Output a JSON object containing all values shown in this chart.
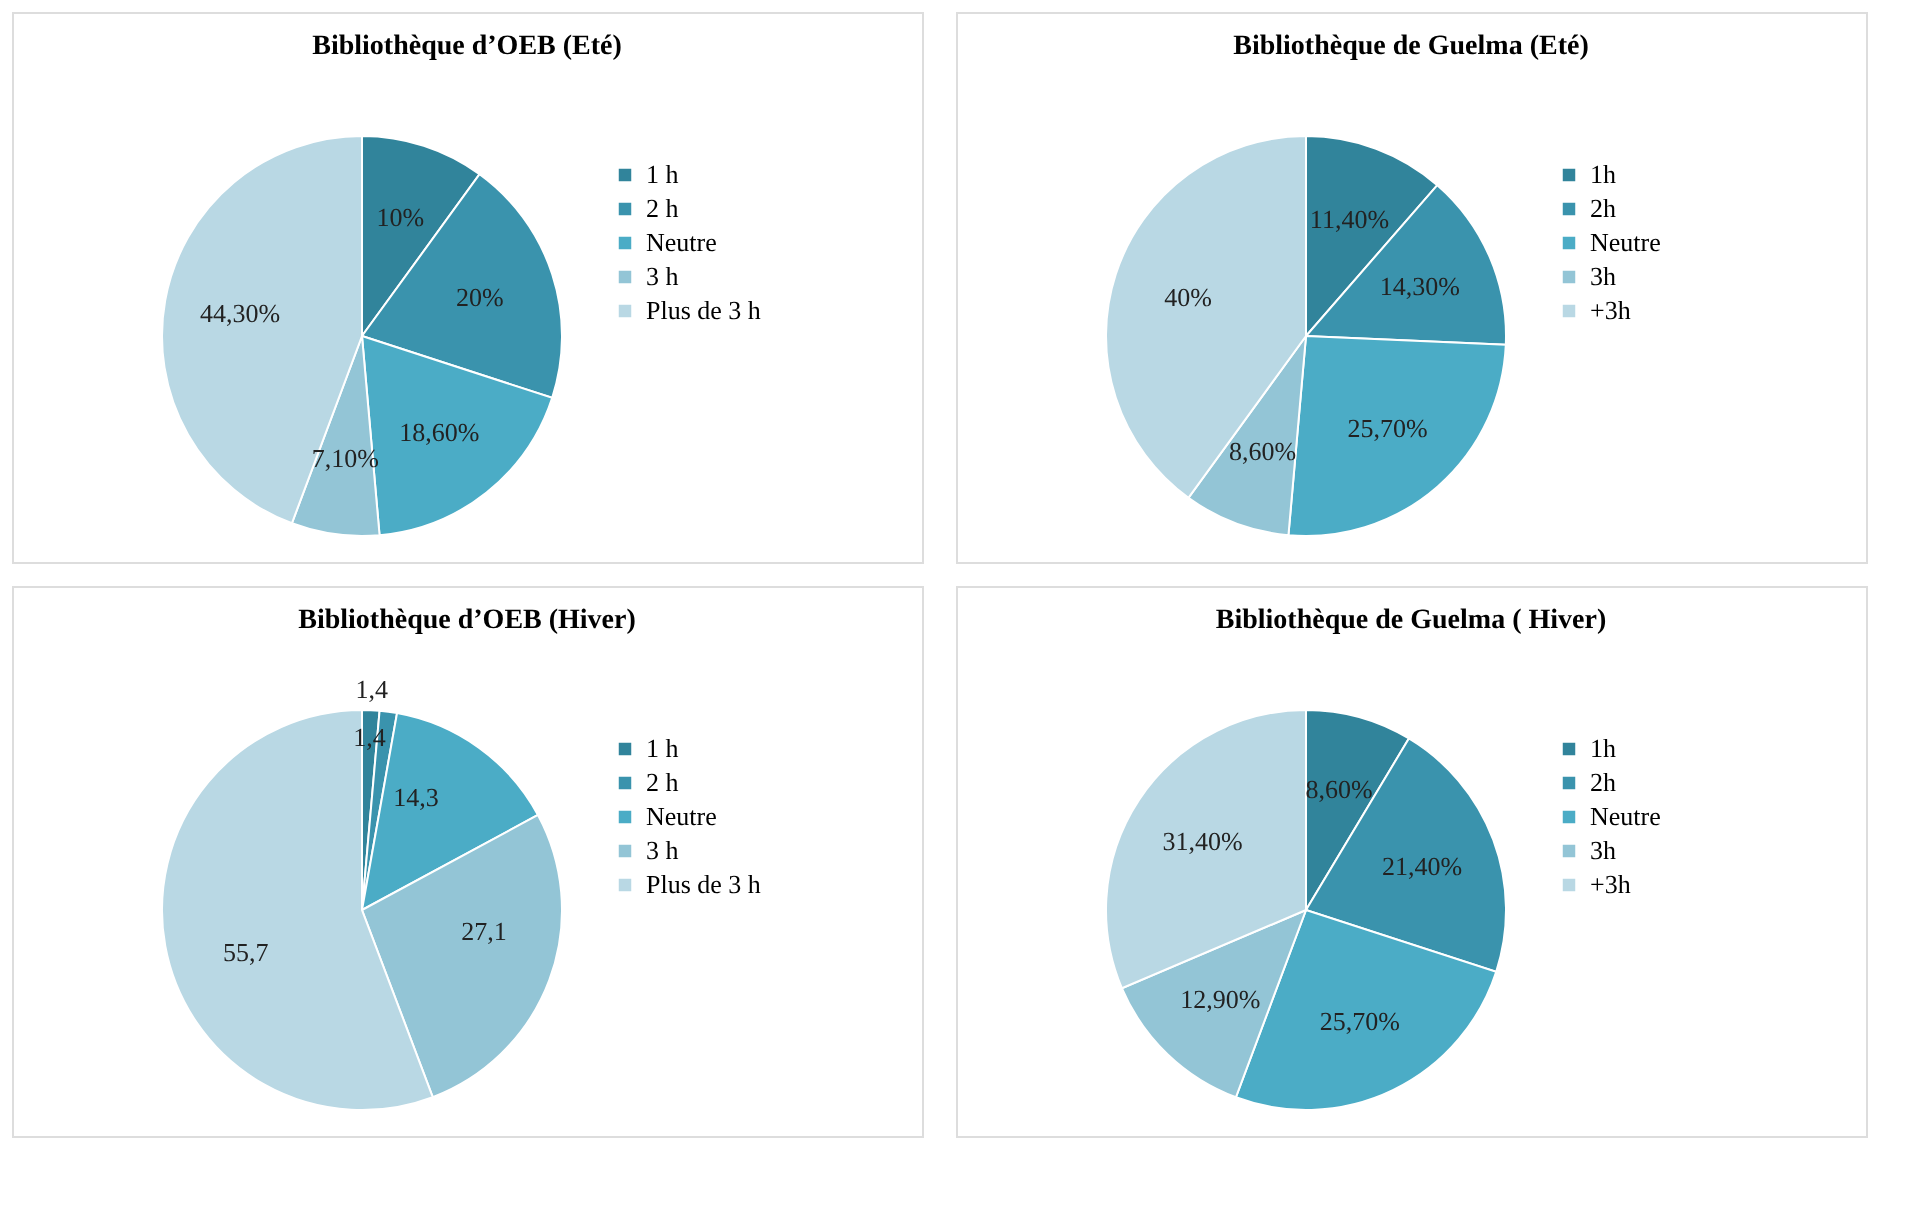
{
  "chart_data": [
    {
      "type": "pie",
      "title": "Bibliothèque d’OEB (Eté)",
      "categories": [
        "1 h",
        "2 h",
        "Neutre",
        "3 h",
        "Plus de 3 h"
      ],
      "values": [
        10,
        20,
        18.6,
        7.1,
        44.3
      ],
      "value_labels": [
        "10%",
        "20%",
        "18,60%",
        "7,10%",
        "44,30%"
      ],
      "colors": [
        "#31849b",
        "#3a93ad",
        "#4bacc6",
        "#93c5d6",
        "#b9d8e4"
      ],
      "legend": "right"
    },
    {
      "type": "pie",
      "title": "Bibliothèque de Guelma  (Eté)",
      "categories": [
        "1h",
        "2h",
        "Neutre",
        "3h",
        "+3h"
      ],
      "values": [
        11.4,
        14.3,
        25.7,
        8.6,
        40
      ],
      "value_labels": [
        "11,40%",
        "14,30%",
        "25,70%",
        "8,60%",
        "40%"
      ],
      "colors": [
        "#31849b",
        "#3a93ad",
        "#4bacc6",
        "#93c5d6",
        "#b9d8e4"
      ],
      "legend": "right"
    },
    {
      "type": "pie",
      "title": "Bibliothèque d’OEB (Hiver)",
      "categories": [
        "1 h",
        "2 h",
        "Neutre",
        "3 h",
        "Plus de 3 h"
      ],
      "values": [
        1.4,
        1.4,
        14.3,
        27.1,
        55.7
      ],
      "value_labels": [
        "1,4",
        "1,4",
        "14,3",
        "27,1",
        "55,7"
      ],
      "colors": [
        "#31849b",
        "#3a93ad",
        "#4bacc6",
        "#93c5d6",
        "#b9d8e4"
      ],
      "legend": "right"
    },
    {
      "type": "pie",
      "title": "Bibliothèque de Guelma  ( Hiver)",
      "categories": [
        "1h",
        "2h",
        "Neutre",
        "3h",
        "+3h"
      ],
      "values": [
        8.6,
        21.4,
        25.7,
        12.9,
        31.4
      ],
      "value_labels": [
        "8,60%",
        "21,40%",
        "25,70%",
        "12,90%",
        "31,40%"
      ],
      "colors": [
        "#31849b",
        "#3a93ad",
        "#4bacc6",
        "#93c5d6",
        "#b9d8e4"
      ],
      "legend": "right"
    }
  ]
}
